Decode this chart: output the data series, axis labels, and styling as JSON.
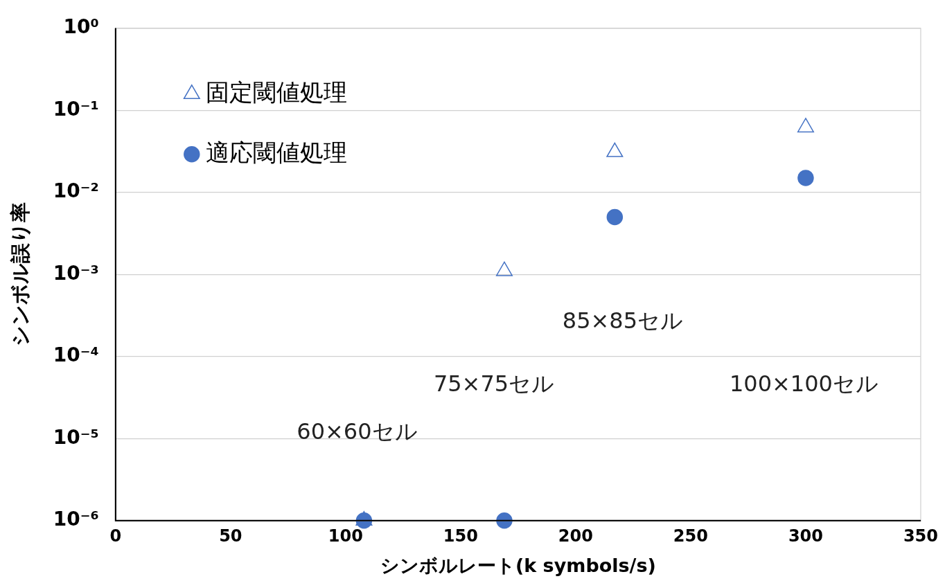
{
  "chart_data": {
    "type": "scatter",
    "xlabel": "シンボルレート(k symbols/s)",
    "ylabel": "シンボル誤り率",
    "xlim": [
      0,
      350
    ],
    "xticks": [
      0,
      50,
      100,
      150,
      200,
      250,
      300,
      350
    ],
    "ylim": [
      1e-06,
      1
    ],
    "yticks": [
      {
        "value": 1e-06,
        "label": "10⁻⁶"
      },
      {
        "value": 1e-05,
        "label": "10⁻⁵"
      },
      {
        "value": 0.0001,
        "label": "10⁻⁴"
      },
      {
        "value": 0.001,
        "label": "10⁻³"
      },
      {
        "value": 0.01,
        "label": "10⁻²"
      },
      {
        "value": 0.1,
        "label": "10⁻¹"
      },
      {
        "value": 1,
        "label": "10⁰"
      }
    ],
    "log": "y",
    "grid": "y",
    "legend": "top left",
    "series": [
      {
        "name": "固定閾値処理",
        "color": "#4472c4",
        "marker": "triangle",
        "x": [
          108,
          169,
          217,
          300
        ],
        "values": [
          1e-06,
          0.0011,
          0.031,
          0.062
        ]
      },
      {
        "name": "適応閾値処理",
        "color": "#4472c4",
        "marker": "circle",
        "x": [
          108,
          169,
          217,
          300
        ],
        "values": [
          1e-06,
          1e-06,
          0.005,
          0.015
        ]
      }
    ],
    "annotations": [
      "60×60セル",
      "75×75セル",
      "85×85セル",
      "100×100セル"
    ]
  }
}
